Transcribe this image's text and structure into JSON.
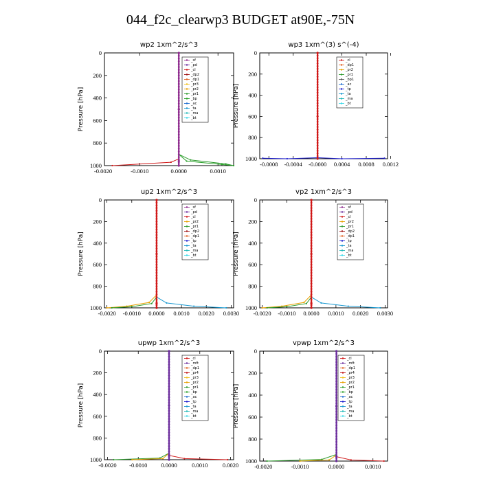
{
  "title": "044_f2c_clearwp3  BUDGET at90E,-75N",
  "colors": {
    "_sf": "#8e2b8e",
    "_pd": "#6a2b9c",
    "_cl": "#d01818",
    "_dp2": "#a01010",
    "_dp1": "#e06020",
    "_pr2": "#e8a000",
    "_pr3": "#f0c020",
    "_pr1": "#2c9a2c",
    "_bp": "#28a028",
    "_ac": "#1a6ad0",
    "_tp": "#1a1acd",
    "_ta": "#1898d0",
    "_ma": "#20b8b8",
    "_bt": "#3ad8e8",
    "_mft": "#6a2b9c",
    "_pr4": "#c01010"
  },
  "chart_data": [
    {
      "type": "line",
      "title": "wp2   1xm^2/s^3",
      "ylabel": "Pressure [hPa]",
      "ylim": [
        1000,
        0
      ],
      "yticks": [
        "0",
        "200",
        "400",
        "600",
        "800",
        "1000"
      ],
      "xlim": [
        -0.0019,
        0.0014
      ],
      "xticks": [
        {
          "v": -0.001,
          "label": "-0.0010"
        },
        {
          "v": 0.0,
          "label": "0.0000"
        },
        {
          "v": 0.001,
          "label": "0.0010"
        }
      ],
      "xtick_edge_labels": [
        "-0.0020",
        ""
      ],
      "legend": [
        "_sf",
        "_pd",
        "_cl",
        "_dp2",
        "_dp1",
        "_pr3",
        "_pr2",
        "_pr1",
        "_bp",
        "_ac",
        "_ta",
        "_ma",
        "_bt"
      ],
      "series": [
        {
          "name": "_cl",
          "x": [
            0.0,
            0.0,
            0.0,
            -0.0002,
            -0.0017
          ],
          "y": [
            0,
            800,
            940,
            970,
            1000
          ]
        },
        {
          "name": "_pr1",
          "x": [
            0.0,
            0.0,
            0.0003,
            0.0012,
            0.0014
          ],
          "y": [
            0,
            900,
            950,
            985,
            1000
          ]
        },
        {
          "name": "_bp",
          "x": [
            0.0,
            0.0,
            0.0002,
            0.0011,
            0.0014
          ],
          "y": [
            0,
            900,
            960,
            990,
            1000
          ]
        },
        {
          "name": "_pd",
          "x": [
            0.0,
            0.0,
            0.0,
            0.0
          ],
          "y": [
            0,
            500,
            960,
            1000
          ]
        },
        {
          "name": "_sf",
          "x": [
            0.0,
            0.0,
            0.0,
            0.0
          ],
          "y": [
            0,
            500,
            960,
            1000
          ]
        }
      ]
    },
    {
      "type": "line",
      "title": "wp3   1xm^(3) s^(-4)",
      "ylabel": "Pressure [hPa]",
      "ylim": [
        1000,
        0
      ],
      "yticks": [
        "0",
        "200",
        "400",
        "600",
        "800",
        "1000"
      ],
      "xlim": [
        -0.00095,
        0.00115
      ],
      "xticks": [
        {
          "v": -0.0008,
          "label": "-0.0008"
        },
        {
          "v": -0.0004,
          "label": "-0.0004"
        },
        {
          "v": 0.0,
          "label": "-0.0000"
        },
        {
          "v": 0.0004,
          "label": "0.0004"
        },
        {
          "v": 0.0008,
          "label": "0.0008"
        },
        {
          "v": 0.0012,
          "label": "0.0012"
        }
      ],
      "legend": [
        "_cl",
        "_dp1",
        "_pr2",
        "_pr1",
        "_bp1",
        "_ac",
        "_tp",
        "_ta",
        "_ma",
        "_bt"
      ],
      "series": [
        {
          "name": "_tp",
          "x": [
            -0.0009,
            -0.0005,
            0.0,
            0.0004,
            0.0011
          ],
          "y": [
            995,
            1000,
            990,
            1000,
            995
          ]
        },
        {
          "name": "_cl",
          "x": [
            0.0,
            0.0,
            0.0
          ],
          "y": [
            0,
            600,
            1000
          ]
        }
      ]
    },
    {
      "type": "line",
      "title": "up2   1xm^2/s^3",
      "ylabel": "Pressure [hPa]",
      "ylim": [
        1000,
        0
      ],
      "yticks": [
        "0",
        "200",
        "400",
        "600",
        "800",
        "1000"
      ],
      "xlim": [
        -0.0021,
        0.0031
      ],
      "xticks": [
        {
          "v": -0.002,
          "label": "-0.0020"
        },
        {
          "v": -0.001,
          "label": "-0.0010"
        },
        {
          "v": 0.0,
          "label": "0.0000"
        },
        {
          "v": 0.001,
          "label": "0.0010"
        },
        {
          "v": 0.002,
          "label": "0.0020"
        },
        {
          "v": 0.003,
          "label": "0.0030"
        }
      ],
      "legend": [
        "_sf",
        "_pd",
        "_cl",
        "_pr2",
        "_pr1",
        "_dp2",
        "_dp1",
        "_tp",
        "_ta",
        "_ma",
        "_bt"
      ],
      "series": [
        {
          "name": "_pr2",
          "x": [
            0.0,
            0.0,
            -0.0003,
            -0.0012,
            -0.002
          ],
          "y": [
            0,
            880,
            950,
            985,
            1000
          ]
        },
        {
          "name": "_pr1",
          "x": [
            0.0,
            0.0,
            -0.0002,
            -0.001,
            -0.0018
          ],
          "y": [
            0,
            900,
            960,
            990,
            1000
          ]
        },
        {
          "name": "_ta",
          "x": [
            0.0,
            0.0,
            0.0004,
            0.0015,
            0.0028
          ],
          "y": [
            0,
            900,
            955,
            985,
            1000
          ]
        },
        {
          "name": "_cl",
          "x": [
            0.0,
            0.0,
            0.0,
            0.0
          ],
          "y": [
            0,
            500,
            960,
            1000
          ]
        }
      ]
    },
    {
      "type": "line",
      "title": "vp2   1xm^2/s^3",
      "ylabel": "Pressure [hPa]",
      "ylim": [
        1000,
        0
      ],
      "yticks": [
        "0",
        "200",
        "400",
        "600",
        "800",
        "1000"
      ],
      "xlim": [
        -0.0021,
        0.0031
      ],
      "xticks": [
        {
          "v": -0.002,
          "label": "-0.0020"
        },
        {
          "v": -0.001,
          "label": "-0.0010"
        },
        {
          "v": 0.0,
          "label": "0.0000"
        },
        {
          "v": 0.001,
          "label": "0.0010"
        },
        {
          "v": 0.002,
          "label": "0.0020"
        },
        {
          "v": 0.003,
          "label": "0.0030"
        }
      ],
      "legend": [
        "_sf",
        "_pd",
        "_cl",
        "_pr2",
        "_pr1",
        "_dp2",
        "_dp1",
        "_tp",
        "_ta",
        "_ma",
        "_bt"
      ],
      "series": [
        {
          "name": "_pr2",
          "x": [
            0.0,
            0.0,
            -0.0003,
            -0.0012,
            -0.002
          ],
          "y": [
            0,
            880,
            950,
            985,
            1000
          ]
        },
        {
          "name": "_pr1",
          "x": [
            0.0,
            0.0,
            -0.0002,
            -0.001,
            -0.0018
          ],
          "y": [
            0,
            900,
            960,
            990,
            1000
          ]
        },
        {
          "name": "_ta",
          "x": [
            0.0,
            0.0,
            0.0004,
            0.0015,
            0.0028
          ],
          "y": [
            0,
            900,
            955,
            985,
            1000
          ]
        },
        {
          "name": "_cl",
          "x": [
            0.0,
            0.0,
            0.0,
            0.0
          ],
          "y": [
            0,
            500,
            960,
            1000
          ]
        }
      ]
    },
    {
      "type": "line",
      "title": "upwp   1xm^2/s^3",
      "ylabel": "Pressure [hPa]",
      "ylim": [
        1000,
        0
      ],
      "yticks": [
        "0",
        "200",
        "400",
        "600",
        "800",
        "1000"
      ],
      "xlim": [
        -0.0021,
        0.0021
      ],
      "xticks": [
        {
          "v": -0.002,
          "label": "-0.0020"
        },
        {
          "v": -0.001,
          "label": "-0.0010"
        },
        {
          "v": 0.0,
          "label": "0.0000"
        },
        {
          "v": 0.001,
          "label": "0.0010"
        },
        {
          "v": 0.002,
          "label": "0.0020"
        }
      ],
      "legend": [
        "_cl",
        "_mft",
        "_dp1",
        "_pr4",
        "_pr3",
        "_pr2",
        "_pr1",
        "_bp",
        "_ac",
        "_tp",
        "_ta",
        "_ma",
        "_bt"
      ],
      "series": [
        {
          "name": "_pr1",
          "x": [
            0.0,
            0.0,
            -0.0003,
            -0.0018
          ],
          "y": [
            0,
            940,
            985,
            1000
          ]
        },
        {
          "name": "_pr2",
          "x": [
            0.0,
            0.0,
            -0.0002,
            -0.0012
          ],
          "y": [
            0,
            940,
            990,
            1000
          ]
        },
        {
          "name": "_cl",
          "x": [
            0.0,
            0.0,
            0.0005,
            0.0019
          ],
          "y": [
            0,
            960,
            990,
            1000
          ]
        },
        {
          "name": "_mft",
          "x": [
            0.0,
            0.0,
            0.0,
            0.0
          ],
          "y": [
            0,
            500,
            960,
            1000
          ]
        }
      ]
    },
    {
      "type": "line",
      "title": "vpwp   1xm^2/s^3",
      "ylabel": "Pressure [hPa]",
      "ylim": [
        1000,
        0
      ],
      "yticks": [
        "0",
        "200",
        "400",
        "600",
        "800",
        "1000"
      ],
      "xlim": [
        -0.0021,
        0.0014
      ],
      "xticks": [
        {
          "v": -0.002,
          "label": "-0.0020"
        },
        {
          "v": -0.001,
          "label": "-0.0010"
        },
        {
          "v": 0.0,
          "label": "0.0000"
        },
        {
          "v": 0.001,
          "label": "0.0010"
        }
      ],
      "legend": [
        "_cl",
        "_mft",
        "_dp1",
        "_pr4",
        "_pr3",
        "_pr2",
        "_pr1",
        "_bp",
        "_ac",
        "_tp",
        "_ta",
        "_ma",
        "_bt"
      ],
      "series": [
        {
          "name": "_pr1",
          "x": [
            0.0,
            0.0,
            -0.0004,
            -0.0019
          ],
          "y": [
            0,
            940,
            985,
            1000
          ]
        },
        {
          "name": "_pr2",
          "x": [
            0.0,
            0.0,
            -0.0002,
            -0.001
          ],
          "y": [
            0,
            945,
            990,
            1000
          ]
        },
        {
          "name": "_cl",
          "x": [
            0.0,
            0.0,
            0.0004,
            0.0013
          ],
          "y": [
            0,
            960,
            990,
            1000
          ]
        },
        {
          "name": "_mft",
          "x": [
            0.0,
            0.0,
            0.0,
            0.0
          ],
          "y": [
            0,
            500,
            960,
            1000
          ]
        }
      ]
    }
  ]
}
